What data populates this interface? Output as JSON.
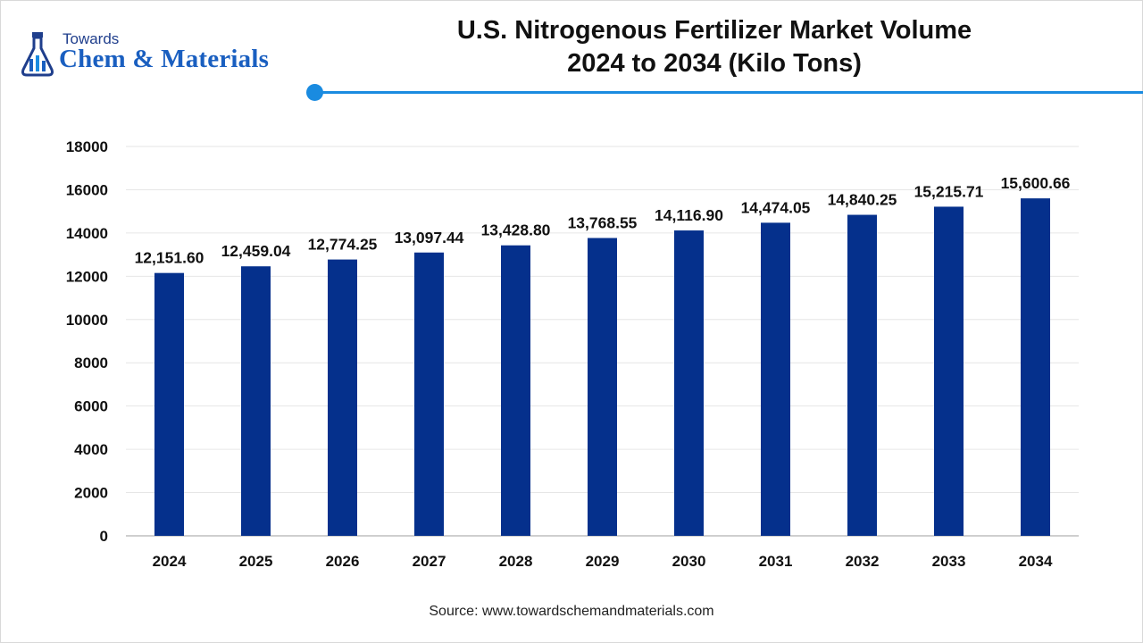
{
  "brand": {
    "top": "Towards",
    "main": "Chem & Materials"
  },
  "title": {
    "line1": "U.S. Nitrogenous Fertilizer Market Volume",
    "line2": "2024 to 2034 (Kilo Tons)"
  },
  "source": "Source: www.towardschemandmaterials.com",
  "colors": {
    "bar": "#05308c",
    "accent": "#1a8be0",
    "brand": "#1a5fc0"
  },
  "chart_data": {
    "type": "bar",
    "categories": [
      "2024",
      "2025",
      "2026",
      "2027",
      "2028",
      "2029",
      "2030",
      "2031",
      "2032",
      "2033",
      "2034"
    ],
    "values": [
      12151.6,
      12459.04,
      12774.25,
      13097.44,
      13428.8,
      13768.55,
      14116.9,
      14474.05,
      14840.25,
      15215.71,
      15600.66
    ],
    "value_labels": [
      "12,151.60",
      "12,459.04",
      "12,774.25",
      "13,097.44",
      "13,428.80",
      "13,768.55",
      "14,116.90",
      "14,474.05",
      "14,840.25",
      "15,215.71",
      "15,600.66"
    ],
    "yticks": [
      "0",
      "2000",
      "4000",
      "6000",
      "8000",
      "10000",
      "12000",
      "14000",
      "16000",
      "18000"
    ],
    "ylim": [
      0,
      18000
    ],
    "grid": true,
    "legend": "none"
  }
}
